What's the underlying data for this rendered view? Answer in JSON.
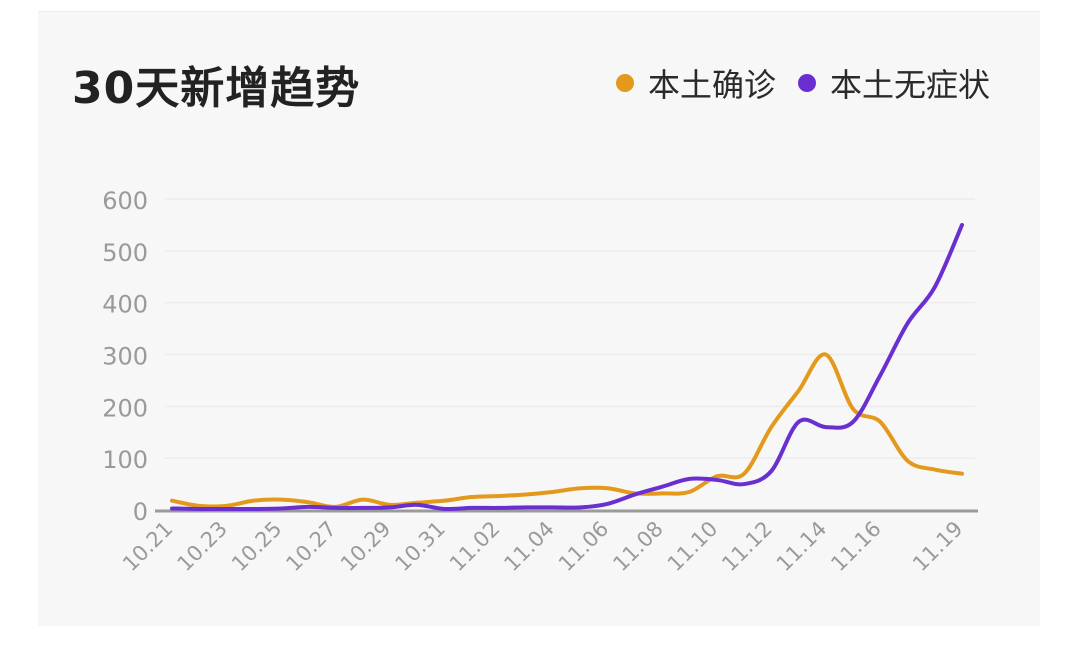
{
  "header": {
    "title": "30天新增趋势"
  },
  "legend": [
    {
      "label": "本土确诊",
      "color": "#e39a1c"
    },
    {
      "label": "本土无症状",
      "color": "#6a2fd0"
    }
  ],
  "chart_data": {
    "type": "line",
    "title": "30天新增趋势",
    "xlabel": "",
    "ylabel": "",
    "ylim": [
      0,
      600
    ],
    "yticks": [
      0,
      100,
      200,
      300,
      400,
      500,
      600
    ],
    "grid": true,
    "legend_position": "top-right",
    "x": [
      "10.21",
      "10.22",
      "10.23",
      "10.24",
      "10.25",
      "10.26",
      "10.27",
      "10.28",
      "10.29",
      "10.30",
      "10.31",
      "11.01",
      "11.02",
      "11.03",
      "11.04",
      "11.05",
      "11.06",
      "11.07",
      "11.08",
      "11.09",
      "11.10",
      "11.11",
      "11.12",
      "11.13",
      "11.14",
      "11.15",
      "11.16",
      "11.17",
      "11.18",
      "11.19"
    ],
    "xtick_labels": [
      "10.21",
      "10.23",
      "10.25",
      "10.27",
      "10.29",
      "10.31",
      "11.02",
      "11.04",
      "11.06",
      "11.08",
      "11.10",
      "11.12",
      "11.14",
      "11.16",
      "11.19"
    ],
    "series": [
      {
        "name": "本土确诊",
        "color": "#e39a1c",
        "values": [
          18,
          8,
          8,
          18,
          20,
          15,
          6,
          20,
          10,
          14,
          18,
          25,
          27,
          30,
          35,
          42,
          42,
          32,
          32,
          35,
          65,
          70,
          160,
          230,
          300,
          195,
          170,
          95,
          78,
          70
        ]
      },
      {
        "name": "本土无症状",
        "color": "#6a2fd0",
        "values": [
          3,
          2,
          2,
          2,
          3,
          6,
          4,
          4,
          5,
          10,
          2,
          4,
          4,
          5,
          5,
          5,
          12,
          30,
          45,
          60,
          58,
          50,
          75,
          170,
          160,
          170,
          260,
          360,
          430,
          550
        ]
      }
    ]
  }
}
